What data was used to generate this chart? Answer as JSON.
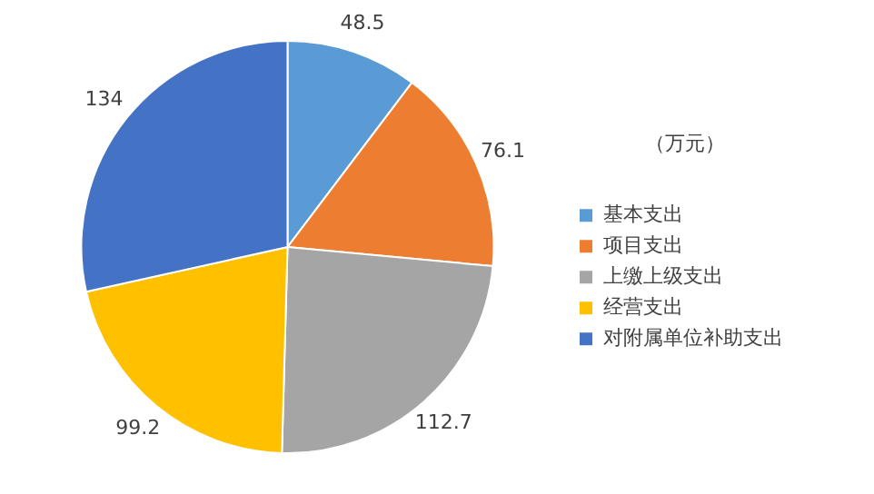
{
  "chart_data": {
    "type": "pie",
    "legend_title": "（万元）",
    "legend": "right",
    "categories": [
      "基本支出",
      "项目支出",
      "上缴上级支出",
      "经营支出",
      "对附属单位补助支出"
    ],
    "values": [
      48.5,
      76.1,
      112.7,
      99.2,
      134
    ],
    "colors": [
      "#5b9bd5",
      "#ed7d31",
      "#a5a5a5",
      "#ffc000",
      "#4472c4"
    ],
    "data_labels": true
  }
}
